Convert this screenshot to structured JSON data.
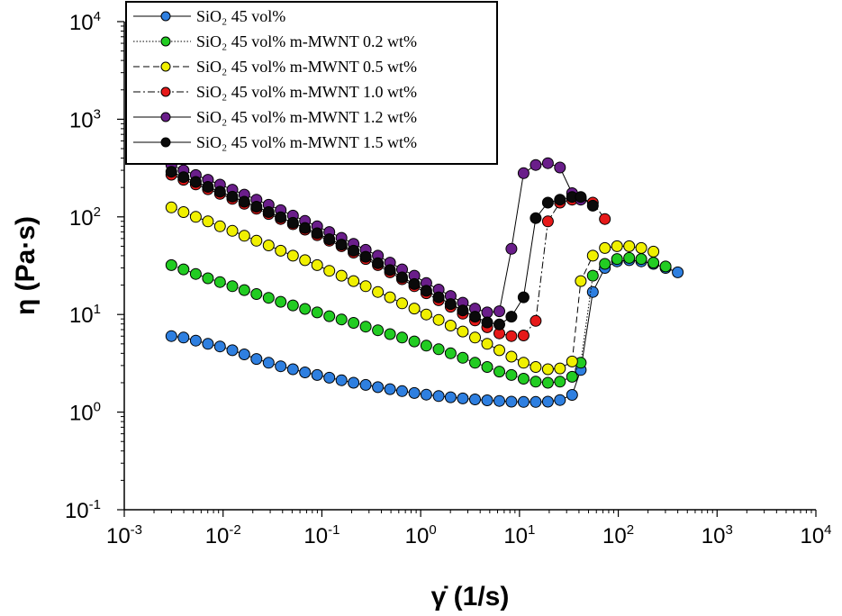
{
  "chart_data": {
    "type": "scatter",
    "title": "",
    "xlabel": "γ̇ (1/s)",
    "ylabel": "η (Pa·s)",
    "xscale": "log",
    "yscale": "log",
    "xlim": [
      0.001,
      10000
    ],
    "ylim": [
      0.1,
      10000
    ],
    "grid": false,
    "legend": "top-left",
    "x_ticks": [
      {
        "base": "10",
        "exp": "-3"
      },
      {
        "base": "10",
        "exp": "-2"
      },
      {
        "base": "10",
        "exp": "-1"
      },
      {
        "base": "10",
        "exp": "0"
      },
      {
        "base": "10",
        "exp": "1"
      },
      {
        "base": "10",
        "exp": "2"
      },
      {
        "base": "10",
        "exp": "3"
      },
      {
        "base": "10",
        "exp": "4"
      }
    ],
    "y_ticks": [
      {
        "base": "10",
        "exp": "-1"
      },
      {
        "base": "10",
        "exp": "0"
      },
      {
        "base": "10",
        "exp": "1"
      },
      {
        "base": "10",
        "exp": "2"
      },
      {
        "base": "10",
        "exp": "3"
      },
      {
        "base": "10",
        "exp": "4"
      }
    ],
    "series": [
      {
        "name": "SiO₂ 45 vol%",
        "color": "#2e7fe0",
        "line_style": "solid",
        "x": [
          0.003,
          0.00398,
          0.00529,
          0.00702,
          0.00931,
          0.0124,
          0.0164,
          0.0218,
          0.0289,
          0.0383,
          0.0509,
          0.0675,
          0.0896,
          0.119,
          0.158,
          0.209,
          0.278,
          0.369,
          0.489,
          0.649,
          0.862,
          1.14,
          1.52,
          2.01,
          2.67,
          3.55,
          4.71,
          6.25,
          8.29,
          11.0,
          14.6,
          19.4,
          25.7,
          34.1,
          41.7,
          55.2,
          73.2,
          97.1,
          129,
          171,
          227,
          301,
          400
        ],
        "y": [
          6.0,
          5.8,
          5.4,
          5.0,
          4.7,
          4.3,
          3.9,
          3.5,
          3.2,
          2.95,
          2.75,
          2.55,
          2.4,
          2.25,
          2.12,
          2.0,
          1.9,
          1.8,
          1.72,
          1.64,
          1.57,
          1.51,
          1.46,
          1.42,
          1.38,
          1.35,
          1.32,
          1.3,
          1.28,
          1.27,
          1.27,
          1.28,
          1.33,
          1.5,
          2.7,
          17.0,
          30.0,
          35.0,
          36.0,
          35.0,
          33.0,
          30.0,
          27.0
        ]
      },
      {
        "name": "SiO₂ 45 vol% m-MWNT 0.2 wt%",
        "color": "#22cc22",
        "line_style": "dotted",
        "x": [
          0.003,
          0.00398,
          0.00529,
          0.00702,
          0.00931,
          0.0124,
          0.0164,
          0.0218,
          0.0289,
          0.0383,
          0.0509,
          0.0675,
          0.0896,
          0.119,
          0.158,
          0.209,
          0.278,
          0.369,
          0.489,
          0.649,
          0.862,
          1.14,
          1.52,
          2.01,
          2.67,
          3.55,
          4.71,
          6.25,
          8.29,
          11.0,
          14.6,
          19.4,
          25.7,
          34.1,
          41.7,
          55.2,
          73.2,
          97.1,
          129,
          171,
          227,
          301
        ],
        "y": [
          32,
          29,
          26,
          23.5,
          21.5,
          19.5,
          17.8,
          16.2,
          14.8,
          13.5,
          12.4,
          11.4,
          10.5,
          9.6,
          8.9,
          8.2,
          7.5,
          6.9,
          6.3,
          5.8,
          5.3,
          4.8,
          4.4,
          4.0,
          3.6,
          3.2,
          2.9,
          2.6,
          2.4,
          2.2,
          2.05,
          2.0,
          2.05,
          2.3,
          3.2,
          25,
          33,
          37,
          38,
          37,
          34,
          31
        ]
      },
      {
        "name": "SiO₂ 45 vol% m-MWNT 0.5 wt%",
        "color": "#f0f000",
        "line_style": "dashed",
        "x": [
          0.003,
          0.00398,
          0.00529,
          0.00702,
          0.00931,
          0.0124,
          0.0164,
          0.0218,
          0.0289,
          0.0383,
          0.0509,
          0.0675,
          0.0896,
          0.119,
          0.158,
          0.209,
          0.278,
          0.369,
          0.489,
          0.649,
          0.862,
          1.14,
          1.52,
          2.01,
          2.67,
          3.55,
          4.71,
          6.25,
          8.29,
          11.0,
          14.6,
          19.4,
          25.7,
          34.1,
          41.7,
          55.2,
          73.2,
          97.1,
          129,
          171,
          227
        ],
        "y": [
          125,
          112,
          100,
          90,
          80,
          72,
          64,
          57,
          51,
          45,
          40,
          36,
          32,
          28,
          25,
          22,
          19.5,
          17,
          15,
          13,
          11.5,
          10,
          8.8,
          7.7,
          6.7,
          5.8,
          5.0,
          4.3,
          3.7,
          3.2,
          2.9,
          2.75,
          2.8,
          3.3,
          22,
          40,
          48,
          50,
          50,
          48,
          44
        ]
      },
      {
        "name": "SiO₂ 45 vol% m-MWNT 1.0 wt%",
        "color": "#e61919",
        "line_style": "dash-dot",
        "x": [
          0.003,
          0.00398,
          0.00529,
          0.00702,
          0.00931,
          0.0124,
          0.0164,
          0.0218,
          0.0289,
          0.0383,
          0.0509,
          0.0675,
          0.0896,
          0.119,
          0.158,
          0.209,
          0.278,
          0.369,
          0.489,
          0.649,
          0.862,
          1.14,
          1.52,
          2.01,
          2.67,
          3.55,
          4.71,
          6.25,
          8.29,
          11.0,
          14.6,
          19.4,
          25.7,
          34.1,
          41.7,
          55.2,
          73.2
        ],
        "y": [
          270,
          240,
          215,
          192,
          172,
          153,
          136,
          121,
          107,
          95,
          84,
          74,
          65,
          57,
          50,
          43,
          37,
          32,
          27,
          23,
          19.5,
          16.5,
          14,
          12,
          10.2,
          8.7,
          7.4,
          6.4,
          6.0,
          6.1,
          8.6,
          90,
          140,
          150,
          155,
          140,
          95
        ]
      },
      {
        "name": "SiO₂ 45 vol% m-MWNT 1.2 wt%",
        "color": "#6a1e8a",
        "line_style": "solid",
        "x": [
          0.003,
          0.00398,
          0.00529,
          0.00702,
          0.00931,
          0.0124,
          0.0164,
          0.0218,
          0.0289,
          0.0383,
          0.0509,
          0.0675,
          0.0896,
          0.119,
          0.158,
          0.209,
          0.278,
          0.369,
          0.489,
          0.649,
          0.862,
          1.14,
          1.52,
          2.01,
          2.67,
          3.55,
          4.71,
          6.25,
          8.29,
          11.0,
          14.6,
          19.4,
          25.7,
          34.1,
          41.7
        ],
        "y": [
          340,
          300,
          268,
          240,
          214,
          190,
          169,
          150,
          133,
          117,
          103,
          91,
          80,
          70,
          61,
          53,
          46,
          40,
          34,
          29,
          25,
          21,
          18,
          15.5,
          13.2,
          11.5,
          10.5,
          10.8,
          47,
          280,
          340,
          355,
          320,
          175,
          150
        ]
      },
      {
        "name": "SiO₂ 45 vol% m-MWNT 1.5 wt%",
        "color": "#0a0a0a",
        "line_style": "solid",
        "x": [
          0.003,
          0.00398,
          0.00529,
          0.00702,
          0.00931,
          0.0124,
          0.0164,
          0.0218,
          0.0289,
          0.0383,
          0.0509,
          0.0675,
          0.0896,
          0.119,
          0.158,
          0.209,
          0.278,
          0.369,
          0.489,
          0.649,
          0.862,
          1.14,
          1.52,
          2.01,
          2.67,
          3.55,
          4.71,
          6.25,
          8.29,
          11.0,
          14.6,
          19.4,
          25.7,
          34.1,
          41.7,
          55.2
        ],
        "y": [
          290,
          255,
          228,
          203,
          181,
          161,
          143,
          127,
          112,
          99,
          87,
          77,
          68,
          59,
          52,
          45,
          39,
          33.5,
          28.5,
          24,
          20.5,
          17.5,
          15,
          12.8,
          11,
          9.5,
          8.3,
          7.9,
          9.5,
          15,
          97,
          140,
          150,
          160,
          160,
          130
        ]
      }
    ]
  }
}
